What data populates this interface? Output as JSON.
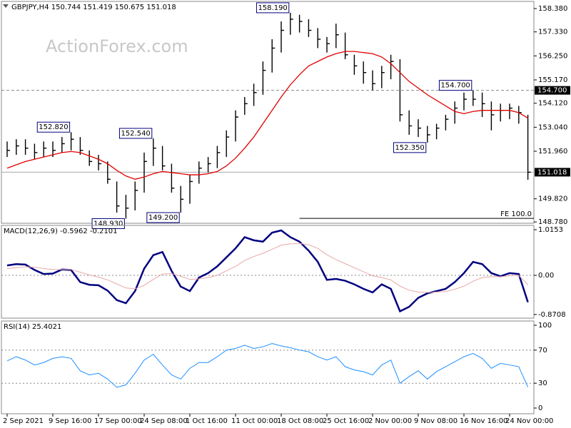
{
  "watermark": "ActionForex.com",
  "chart_data": [
    {
      "type": "hlc",
      "title": "GBPJPY,H4  150.744 151.419 150.675 151.018",
      "color": "#000000",
      "high": [
        152.4,
        152.5,
        152.5,
        152.3,
        152.4,
        152.4,
        152.6,
        152.82,
        152.6,
        152.0,
        151.8,
        151.5,
        150.6,
        150.0,
        150.6,
        151.9,
        152.54,
        152.2,
        151.4,
        150.4,
        150.9,
        151.5,
        151.7,
        152.2,
        152.9,
        153.8,
        154.4,
        155.0,
        156.0,
        157.0,
        157.8,
        158.19,
        158.1,
        157.9,
        157.5,
        157.1,
        157.7,
        157.3,
        156.3,
        156.0,
        155.6,
        155.8,
        156.3,
        156.1,
        153.8,
        153.4,
        153.1,
        153.2,
        153.6,
        154.2,
        154.6,
        154.7,
        154.6,
        154.2,
        154.1,
        154.1,
        154.0,
        153.6
      ],
      "low": [
        151.7,
        151.8,
        151.8,
        151.6,
        151.7,
        151.7,
        151.9,
        152.0,
        151.8,
        151.3,
        151.1,
        150.5,
        149.2,
        148.93,
        149.3,
        150.1,
        151.3,
        151.1,
        150.1,
        149.2,
        149.6,
        150.5,
        151.0,
        151.2,
        151.7,
        152.4,
        153.6,
        154.0,
        154.5,
        155.5,
        156.4,
        157.2,
        157.3,
        157.1,
        156.6,
        156.4,
        156.6,
        156.1,
        155.4,
        155.0,
        154.7,
        154.8,
        155.2,
        153.3,
        152.7,
        152.6,
        152.35,
        152.5,
        152.9,
        153.2,
        153.8,
        154.0,
        153.5,
        152.9,
        153.3,
        153.4,
        153.2,
        150.675
      ],
      "close": [
        152.0,
        152.2,
        152.1,
        151.9,
        152.1,
        152.0,
        152.3,
        152.5,
        152.0,
        151.5,
        151.4,
        150.7,
        149.5,
        149.4,
        150.2,
        151.5,
        152.1,
        151.3,
        150.3,
        149.8,
        150.6,
        151.2,
        151.4,
        151.9,
        152.6,
        153.5,
        154.1,
        154.6,
        155.6,
        156.6,
        157.4,
        157.9,
        157.8,
        157.4,
        157.0,
        156.8,
        157.2,
        156.3,
        155.8,
        155.5,
        155.0,
        155.5,
        156.0,
        153.6,
        153.1,
        153.0,
        152.7,
        153.0,
        153.4,
        153.9,
        154.3,
        154.3,
        154.1,
        153.6,
        153.8,
        153.9,
        153.7,
        151.018
      ],
      "overlays": [
        {
          "color": "#e00000",
          "values": [
            151.2,
            151.35,
            151.5,
            151.6,
            151.7,
            151.8,
            151.9,
            151.95,
            151.9,
            151.75,
            151.6,
            151.4,
            151.1,
            150.85,
            150.7,
            150.8,
            150.95,
            151.05,
            151.0,
            150.95,
            150.9,
            150.9,
            150.95,
            151.05,
            151.3,
            151.65,
            152.1,
            152.6,
            153.2,
            153.8,
            154.4,
            154.95,
            155.4,
            155.8,
            156.0,
            156.2,
            156.35,
            156.45,
            156.45,
            156.4,
            156.35,
            156.2,
            155.9,
            155.5,
            155.1,
            154.8,
            154.5,
            154.25,
            154.0,
            153.75,
            153.65,
            153.75,
            153.8,
            153.8,
            153.8,
            153.8,
            153.7,
            153.45
          ]
        }
      ],
      "ylim": [
        148.72,
        158.7
      ],
      "yticks": [
        {
          "value": 158.38,
          "label": "158.380"
        },
        {
          "value": 157.33,
          "label": "157.330"
        },
        {
          "value": 156.25,
          "label": "156.250"
        },
        {
          "value": 155.17,
          "label": "155.170"
        },
        {
          "value": 154.12,
          "label": "154.120"
        },
        {
          "value": 153.04,
          "label": "153.040"
        },
        {
          "value": 151.96,
          "label": "151.960"
        },
        {
          "value": 149.82,
          "label": "149.820"
        },
        {
          "value": 148.78,
          "label": "148.780"
        }
      ],
      "levels": [
        {
          "value": 154.7,
          "label": "154.700",
          "style": "dashed"
        },
        {
          "value": 151.018,
          "label": "151.018",
          "style": "solid"
        }
      ],
      "fe": {
        "value": 148.94,
        "label": "FE 100.0",
        "from": 32
      },
      "annotations": [
        {
          "x": 31,
          "value": 158.19,
          "label": "158.190"
        },
        {
          "x": 7,
          "value": 152.82,
          "label": "152.820"
        },
        {
          "x": 16,
          "value": 152.54,
          "label": "152.540"
        },
        {
          "x": 13,
          "value": 148.93,
          "label": "148.930"
        },
        {
          "x": 19,
          "value": 149.2,
          "label": "149.200"
        },
        {
          "x": 51,
          "value": 154.7,
          "label": "154.700"
        },
        {
          "x": 46,
          "value": 152.35,
          "label": "152.350"
        }
      ]
    },
    {
      "type": "line",
      "title": "MACD(12,26,9) -0.5962 -0.2101",
      "series": [
        {
          "color": "#000080",
          "values": [
            0.22,
            0.25,
            0.24,
            0.12,
            0.03,
            0.04,
            0.13,
            0.12,
            -0.15,
            -0.21,
            -0.22,
            -0.34,
            -0.55,
            -0.62,
            -0.35,
            0.15,
            0.45,
            0.52,
            0.1,
            -0.25,
            -0.35,
            -0.05,
            0.05,
            0.2,
            0.4,
            0.6,
            0.85,
            0.78,
            0.75,
            0.95,
            1.0,
            0.85,
            0.75,
            0.55,
            0.3,
            -0.1,
            -0.08,
            -0.12,
            -0.2,
            -0.3,
            -0.38,
            -0.2,
            -0.3,
            -0.8,
            -0.7,
            -0.5,
            -0.4,
            -0.35,
            -0.3,
            -0.15,
            0.05,
            0.3,
            0.25,
            0.05,
            -0.02,
            0.05,
            0.03,
            -0.5962
          ]
        },
        {
          "color": "#e8a8a8",
          "values": [
            0.15,
            0.17,
            0.19,
            0.18,
            0.15,
            0.13,
            0.13,
            0.13,
            0.07,
            0.01,
            -0.04,
            -0.1,
            -0.19,
            -0.28,
            -0.3,
            -0.22,
            -0.09,
            0.03,
            0.04,
            -0.02,
            -0.09,
            -0.08,
            -0.05,
            0.0,
            0.1,
            0.2,
            0.33,
            0.42,
            0.49,
            0.58,
            0.67,
            0.7,
            0.71,
            0.68,
            0.6,
            0.46,
            0.35,
            0.26,
            0.17,
            0.08,
            -0.01,
            -0.05,
            -0.1,
            -0.24,
            -0.33,
            -0.37,
            -0.38,
            -0.37,
            -0.36,
            -0.31,
            -0.24,
            -0.13,
            -0.05,
            -0.03,
            -0.03,
            -0.01,
            0.0,
            -0.2101
          ]
        }
      ],
      "ylim": [
        -0.952,
        1.111
      ],
      "yticks": [
        {
          "value": 1.0153,
          "label": "1.0153"
        },
        {
          "value": 0,
          "label": "0.00"
        },
        {
          "value": -0.8708,
          "label": "-0.8708"
        }
      ],
      "levels": [
        0
      ]
    },
    {
      "type": "line",
      "title": "RSI(14) 25.4021",
      "series": [
        {
          "color": "#1e90ff",
          "values": [
            57,
            62,
            58,
            52,
            55,
            60,
            62,
            60,
            45,
            40,
            42,
            35,
            25,
            28,
            42,
            58,
            65,
            52,
            40,
            35,
            48,
            55,
            55,
            62,
            70,
            72,
            76,
            72,
            74,
            78,
            75,
            73,
            70,
            68,
            62,
            58,
            62,
            50,
            46,
            44,
            40,
            52,
            58,
            30,
            38,
            45,
            35,
            44,
            50,
            56,
            62,
            66,
            60,
            48,
            54,
            52,
            50,
            25.4021
          ]
        }
      ],
      "ylim": [
        -6.9,
        105.2
      ],
      "yticks": [
        100,
        70,
        30,
        0
      ],
      "levels": [
        70,
        30
      ],
      "categories": [
        "2 Sep 2021",
        null,
        null,
        null,
        null,
        "9 Sep 16:00",
        null,
        null,
        null,
        null,
        "17 Sep 00:00",
        null,
        null,
        null,
        null,
        "24 Sep 08:00",
        null,
        null,
        null,
        null,
        "1 Oct 16:00",
        null,
        null,
        null,
        null,
        "11 Oct 00:00",
        null,
        null,
        null,
        null,
        "18 Oct 08:00",
        null,
        null,
        null,
        null,
        "25 Oct 16:00",
        null,
        null,
        null,
        null,
        "2 Nov 00:00",
        null,
        null,
        null,
        null,
        "9 Nov 08:00",
        null,
        null,
        null,
        null,
        "16 Nov 16:00",
        null,
        null,
        null,
        null,
        "24 Nov 00:00",
        null,
        null
      ]
    }
  ]
}
